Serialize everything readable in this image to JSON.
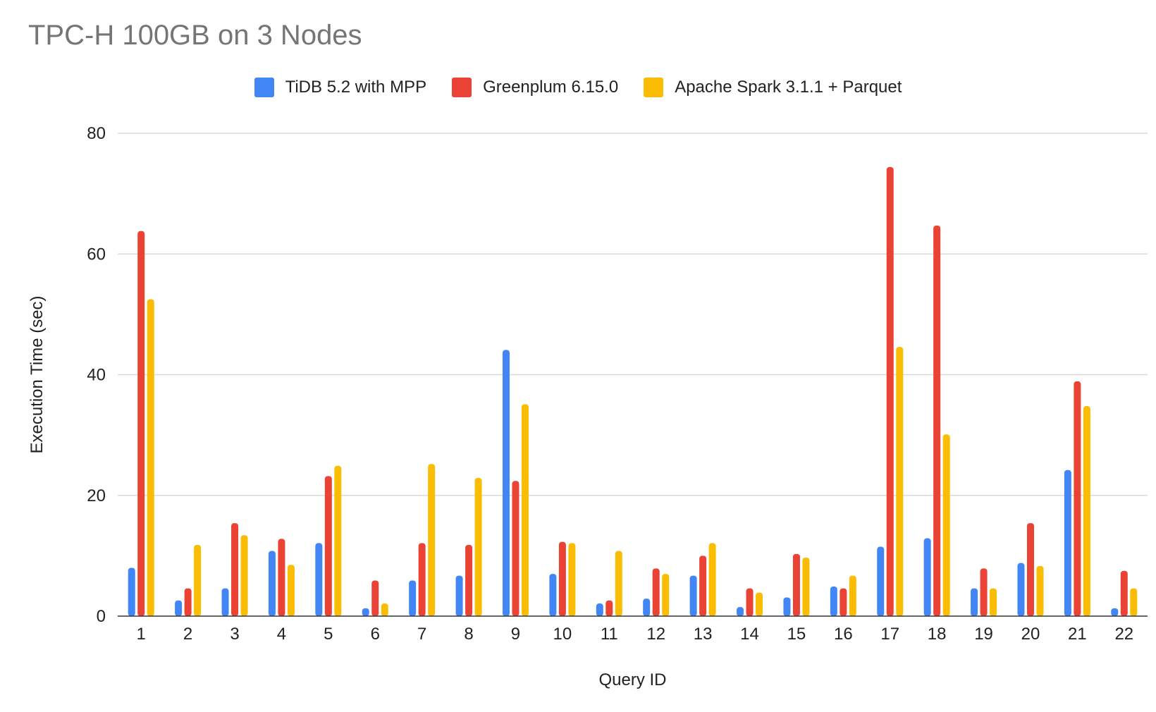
{
  "chart_data": {
    "type": "bar",
    "title": "TPC-H 100GB on 3 Nodes",
    "xlabel": "Query ID",
    "ylabel": "Execution Time (sec)",
    "ylim": [
      0,
      80
    ],
    "yticks": [
      "0",
      "20",
      "40",
      "60",
      "80"
    ],
    "grid": true,
    "legend_position": "top-center",
    "categories": [
      "1",
      "2",
      "3",
      "4",
      "5",
      "6",
      "7",
      "8",
      "9",
      "10",
      "11",
      "12",
      "13",
      "14",
      "15",
      "16",
      "17",
      "18",
      "19",
      "20",
      "21",
      "22"
    ],
    "series": [
      {
        "name": "TiDB 5.2 with MPP",
        "color": "#4285F4",
        "values": [
          8,
          2.6,
          4.6,
          10.8,
          12.1,
          1.3,
          5.9,
          6.7,
          44.1,
          7,
          2.1,
          2.9,
          6.7,
          1.5,
          3.1,
          4.9,
          11.5,
          12.9,
          4.6,
          8.8,
          24.2,
          1.3
        ]
      },
      {
        "name": "Greenplum 6.15.0",
        "color": "#EA4335",
        "values": [
          63.8,
          4.6,
          15.4,
          12.8,
          23.2,
          5.9,
          12.1,
          11.8,
          22.4,
          12.3,
          2.6,
          7.9,
          10,
          4.6,
          10.3,
          4.6,
          74.4,
          64.7,
          7.9,
          15.4,
          38.9,
          7.5
        ]
      },
      {
        "name": "Apache Spark 3.1.1 + Parquet",
        "color": "#FBBC04",
        "values": [
          52.5,
          11.8,
          13.4,
          8.5,
          24.9,
          2.1,
          25.2,
          22.9,
          35.1,
          12.1,
          10.8,
          7,
          12.1,
          3.9,
          9.7,
          6.7,
          44.6,
          30.1,
          4.6,
          8.3,
          34.8,
          4.6
        ]
      }
    ]
  }
}
